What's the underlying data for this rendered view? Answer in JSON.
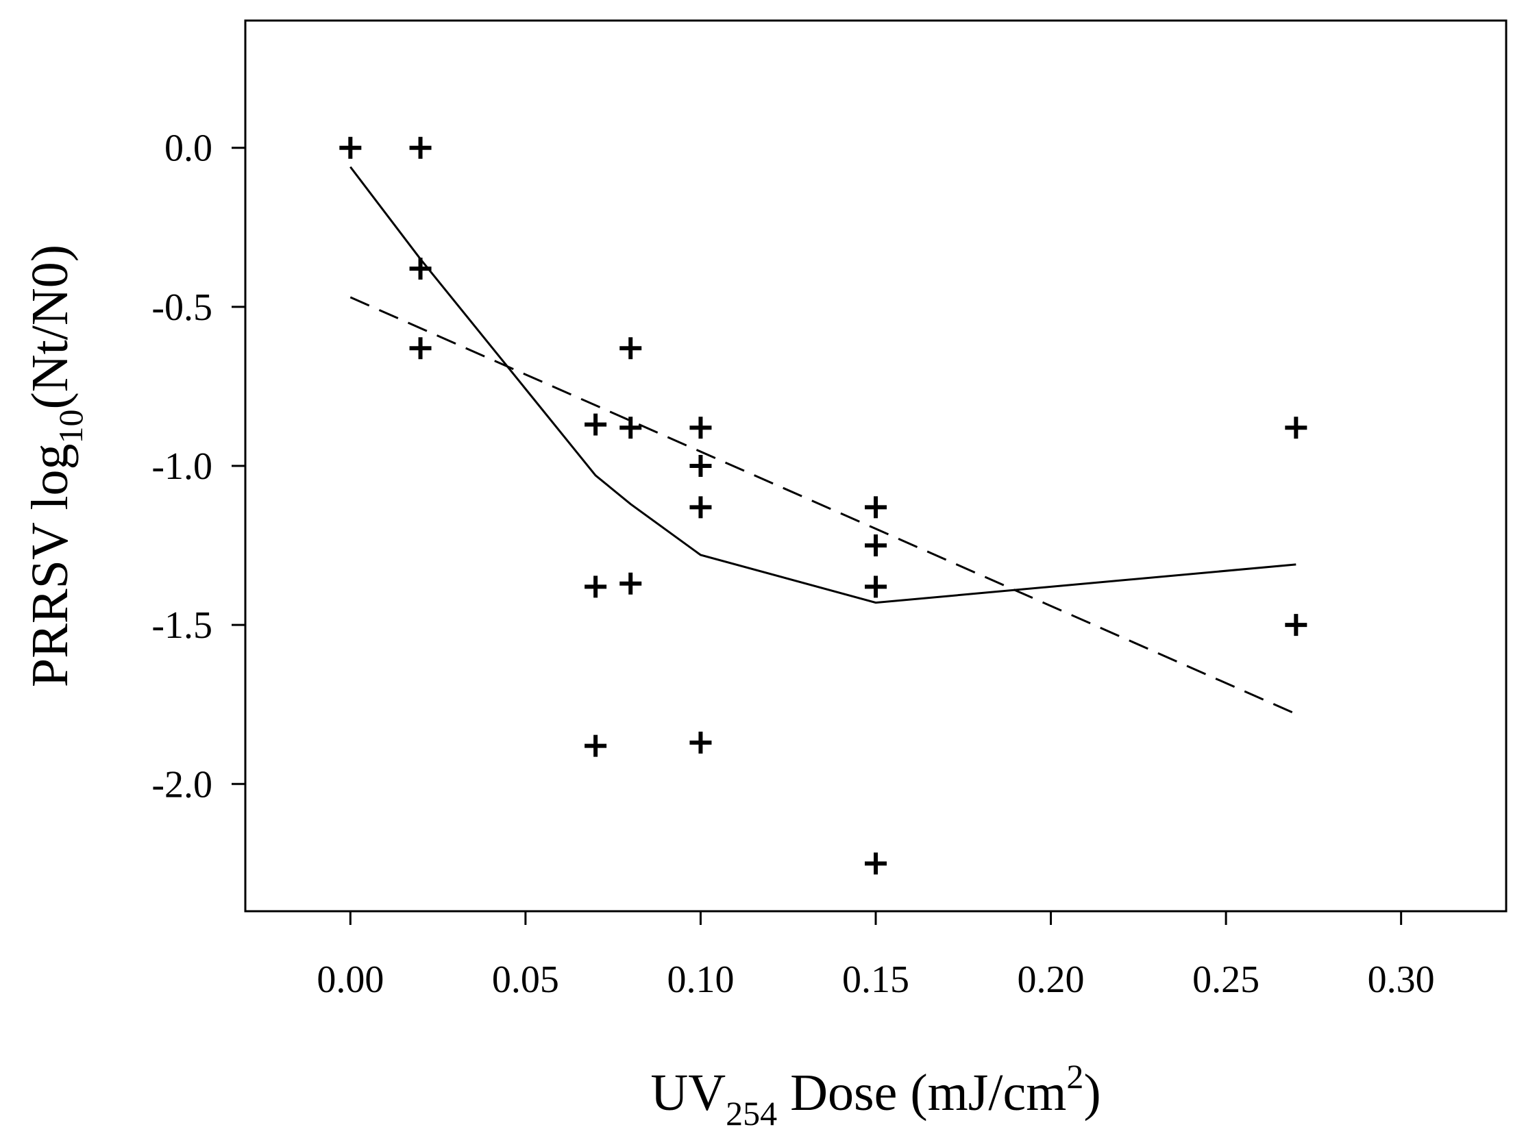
{
  "chart_data": {
    "type": "scatter",
    "title": "",
    "xlabel": {
      "main": "UV",
      "sub": "254",
      "rest": " Dose (mJ/cm",
      "sup": "2",
      "end": ")"
    },
    "ylabel": {
      "main": "PRRSV log",
      "sub": "10",
      "rest": "(Nt/N0)"
    },
    "xlim": [
      -0.03,
      0.33
    ],
    "ylim": [
      -2.4,
      0.4
    ],
    "xticks": [
      0.0,
      0.05,
      0.1,
      0.15,
      0.2,
      0.25,
      0.3
    ],
    "xtick_labels": [
      "0.00",
      "0.05",
      "0.10",
      "0.15",
      "0.20",
      "0.25",
      "0.30"
    ],
    "yticks": [
      0.0,
      -0.5,
      -1.0,
      -1.5,
      -2.0
    ],
    "ytick_labels": [
      "0.0",
      "-0.5",
      "-1.0",
      "-1.5",
      "-2.0"
    ],
    "grid": false,
    "series": [
      {
        "name": "observations",
        "kind": "points",
        "marker": "plus",
        "x": [
          0.0,
          0.02,
          0.02,
          0.02,
          0.07,
          0.07,
          0.07,
          0.08,
          0.08,
          0.08,
          0.1,
          0.1,
          0.1,
          0.1,
          0.15,
          0.15,
          0.15,
          0.15,
          0.27,
          0.27
        ],
        "y": [
          0.0,
          0.0,
          -0.38,
          -0.63,
          -0.87,
          -1.38,
          -1.88,
          -0.63,
          -0.88,
          -1.37,
          -0.88,
          -1.0,
          -1.13,
          -1.87,
          -1.13,
          -1.25,
          -1.38,
          -2.25,
          -0.88,
          -1.5
        ]
      },
      {
        "name": "fit-solid",
        "kind": "line",
        "style": "solid",
        "x": [
          0.0,
          0.02,
          0.07,
          0.08,
          0.1,
          0.15,
          0.27
        ],
        "y": [
          -0.06,
          -0.35,
          -1.03,
          -1.12,
          -1.28,
          -1.43,
          -1.31
        ]
      },
      {
        "name": "fit-dashed",
        "kind": "line",
        "style": "dashed",
        "x": [
          0.0,
          0.27
        ],
        "y": [
          -0.47,
          -1.78
        ]
      }
    ]
  }
}
